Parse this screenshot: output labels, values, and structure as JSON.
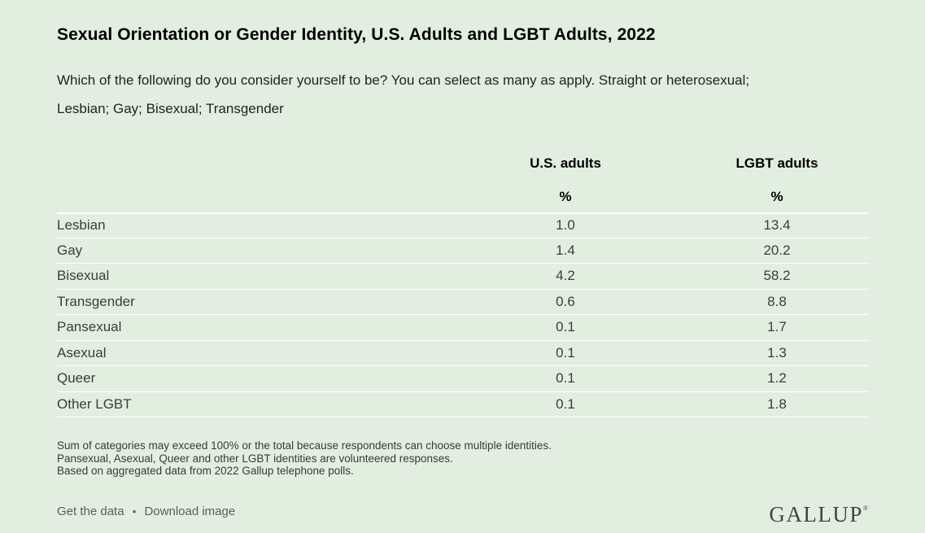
{
  "page": {
    "background_color": "#e2efe0",
    "divider_color": "#ffffff",
    "title": "Sexual Orientation or Gender Identity, U.S. Adults and LGBT Adults, 2022",
    "subtitle": "Which of the following do you consider yourself to be? You can select as many as apply. Straight or heterosexual; Lesbian; Gay; Bisexual; Transgender"
  },
  "chart_data": {
    "type": "table",
    "title": "Sexual Orientation or Gender Identity, U.S. Adults and LGBT Adults, 2022",
    "columns": [
      "",
      "U.S. adults",
      "LGBT adults"
    ],
    "unit_row": [
      "",
      "%",
      "%"
    ],
    "rows": [
      {
        "label": "Lesbian",
        "us_adults": "1.0",
        "lgbt_adults": "13.4"
      },
      {
        "label": "Gay",
        "us_adults": "1.4",
        "lgbt_adults": "20.2"
      },
      {
        "label": "Bisexual",
        "us_adults": "4.2",
        "lgbt_adults": "58.2"
      },
      {
        "label": "Transgender",
        "us_adults": "0.6",
        "lgbt_adults": "8.8"
      },
      {
        "label": "Pansexual",
        "us_adults": "0.1",
        "lgbt_adults": "1.7"
      },
      {
        "label": "Asexual",
        "us_adults": "0.1",
        "lgbt_adults": "1.3"
      },
      {
        "label": "Queer",
        "us_adults": "0.1",
        "lgbt_adults": "1.2"
      },
      {
        "label": "Other LGBT",
        "us_adults": "0.1",
        "lgbt_adults": "1.8"
      }
    ]
  },
  "footnotes": [
    "Sum of categories may exceed 100% or the total because respondents can choose multiple identities.",
    "Pansexual, Asexual, Queer and other LGBT identities are volunteered responses.",
    "Based on aggregated data from 2022 Gallup telephone polls."
  ],
  "footer": {
    "get_data_label": "Get the data",
    "separator": "•",
    "download_label": "Download image",
    "logo": "GALLUP",
    "logo_trademark": "®"
  }
}
